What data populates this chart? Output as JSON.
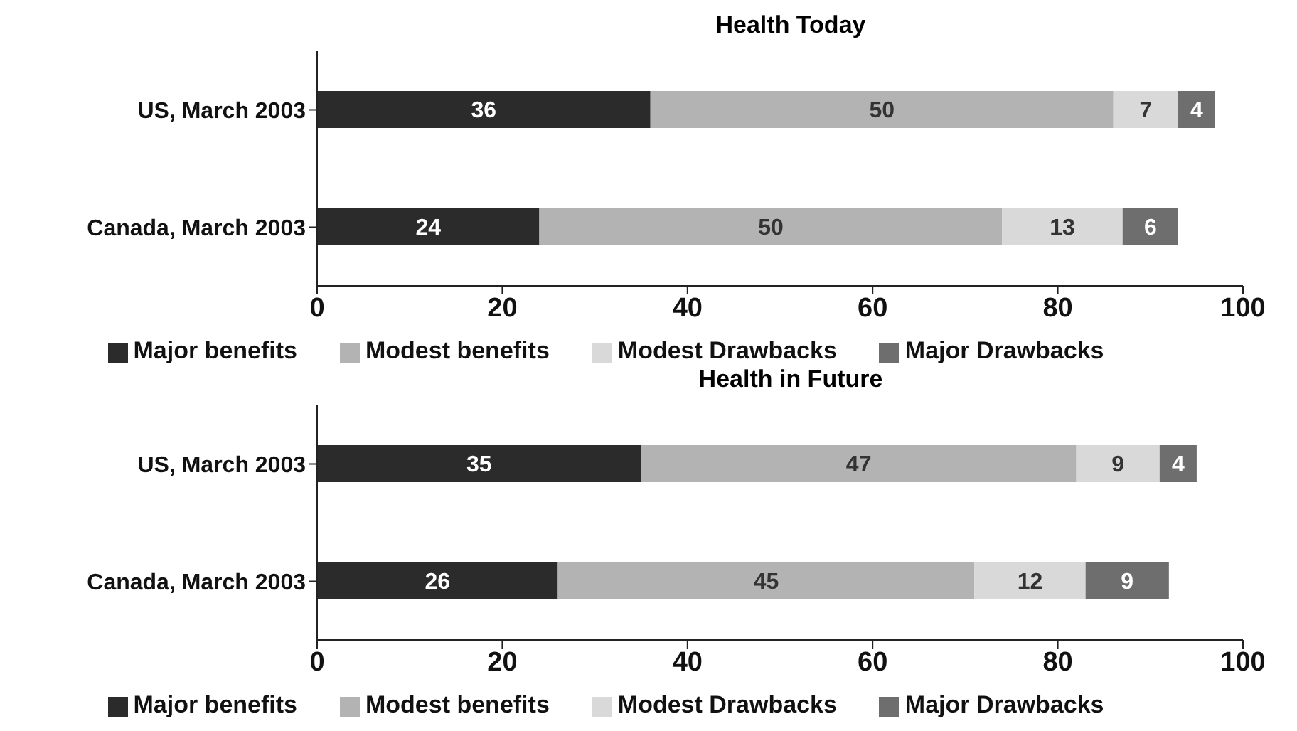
{
  "chart_data": [
    {
      "type": "bar",
      "title": "Health Today",
      "orientation": "horizontal",
      "stacked": true,
      "categories": [
        "US, March 2003",
        "Canada, March 2003"
      ],
      "xlim": [
        0,
        100
      ],
      "xticks": [
        0,
        20,
        40,
        60,
        80,
        100
      ],
      "legend": "bottom",
      "data_labels": true,
      "series": [
        {
          "name": "Major benefits",
          "color": "#2b2b2b",
          "values": [
            36,
            24
          ]
        },
        {
          "name": "Modest benefits",
          "color": "#b3b3b3",
          "values": [
            50,
            50
          ]
        },
        {
          "name": "Modest Drawbacks",
          "color": "#d9d9d9",
          "values": [
            7,
            13
          ]
        },
        {
          "name": "Major Drawbacks",
          "color": "#6e6e6e",
          "values": [
            4,
            6
          ]
        }
      ]
    },
    {
      "type": "bar",
      "title": "Health in Future",
      "orientation": "horizontal",
      "stacked": true,
      "categories": [
        "US, March 2003",
        "Canada, March 2003"
      ],
      "xlim": [
        0,
        100
      ],
      "xticks": [
        0,
        20,
        40,
        60,
        80,
        100
      ],
      "legend": "bottom",
      "data_labels": true,
      "series": [
        {
          "name": "Major benefits",
          "color": "#2b2b2b",
          "values": [
            35,
            26
          ]
        },
        {
          "name": "Modest benefits",
          "color": "#b3b3b3",
          "values": [
            47,
            45
          ]
        },
        {
          "name": "Modest Drawbacks",
          "color": "#d9d9d9",
          "values": [
            9,
            12
          ]
        },
        {
          "name": "Major Drawbacks",
          "color": "#6e6e6e",
          "values": [
            4,
            9
          ]
        }
      ]
    }
  ]
}
